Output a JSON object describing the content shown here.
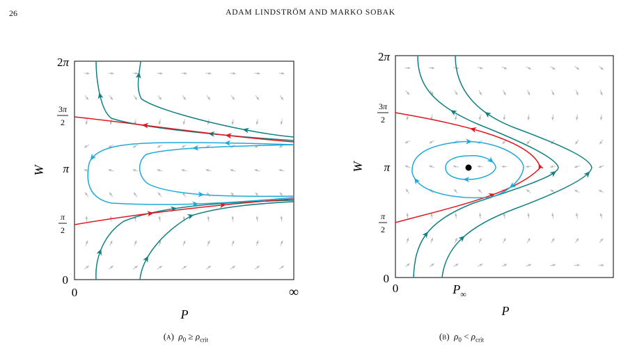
{
  "header": {
    "page_number": "26",
    "running_head": "ADAM LINDSTRÖM AND MARKO SOBAK"
  },
  "colors": {
    "separatrix": "#e0161e",
    "orbit_teal": "#107f82",
    "orbit_blue": "#1fa9d9",
    "vector_field": "#b8b8b8",
    "equilibrium": "#000000"
  },
  "panels": [
    {
      "id": "a",
      "x_axis_label": "P",
      "y_axis_label": "W",
      "x_ticks": [
        "0",
        "∞"
      ],
      "y_ticks": [
        "0",
        "π/2",
        "π",
        "3π/2",
        "2π"
      ],
      "caption_tag": "(a)",
      "caption_condition": "ρ0 ≥ ρcrit"
    },
    {
      "id": "b",
      "x_axis_label": "P",
      "y_axis_label": "W",
      "x_ticks": [
        "0",
        "P∞"
      ],
      "y_ticks": [
        "0",
        "π/2",
        "π",
        "3π/2",
        "2π"
      ],
      "caption_tag": "(b)",
      "caption_condition": "ρ0 < ρcrit"
    }
  ]
}
